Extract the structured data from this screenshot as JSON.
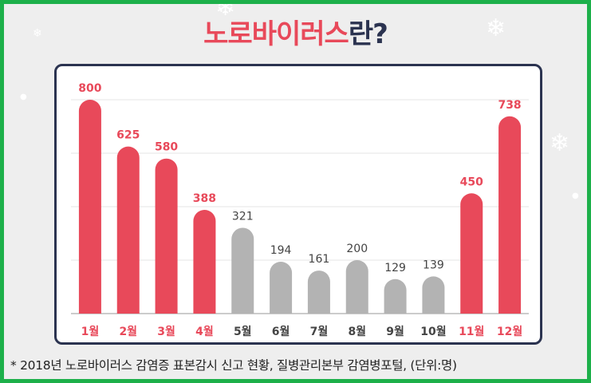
{
  "header": {
    "title_main": "노로바이러스",
    "title_suffix": "란?"
  },
  "footnote": "* 2018년 노로바이러스 감염증 표본감시 신고 현황, 질병관리본부 감염병포털, (단위:명)",
  "colors": {
    "highlight": "#e8495a",
    "normal": "#b3b3b3",
    "highlight_label": "#e8495a",
    "normal_label": "#444444",
    "border": "#1db04a",
    "panel_border": "#2b3350"
  },
  "chart_data": {
    "type": "bar",
    "categories": [
      "1월",
      "2월",
      "3월",
      "4월",
      "5월",
      "6월",
      "7월",
      "8월",
      "9월",
      "10월",
      "11월",
      "12월"
    ],
    "values": [
      800,
      625,
      580,
      388,
      321,
      194,
      161,
      200,
      129,
      139,
      450,
      738
    ],
    "highlighted": [
      true,
      true,
      true,
      true,
      false,
      false,
      false,
      false,
      false,
      false,
      true,
      true
    ],
    "ylim": [
      0,
      800
    ],
    "grid": true,
    "gridlines": [
      200,
      400,
      600,
      800
    ]
  }
}
